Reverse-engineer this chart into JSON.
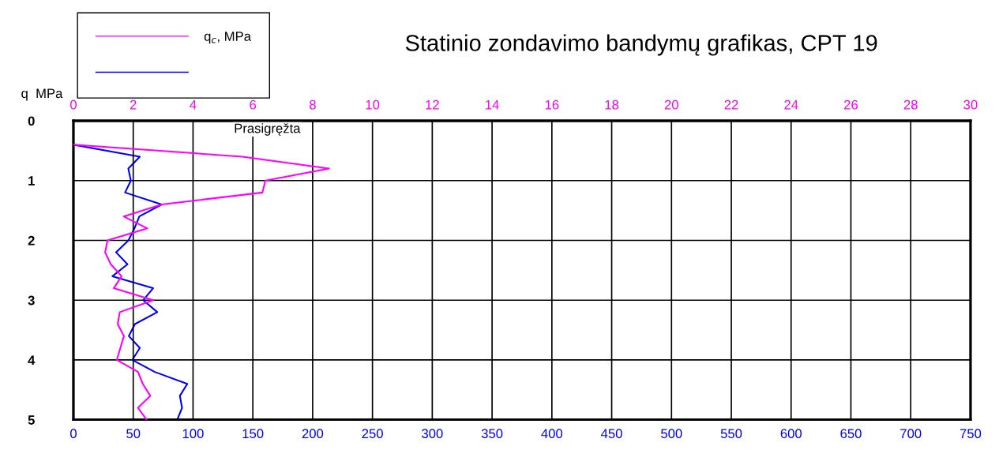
{
  "chart_data": {
    "type": "line",
    "title": "Statinio zondavimo bandymų grafikas, CPT 19",
    "x2label": "q  MPa",
    "orientation": "horizontal",
    "series": [
      {
        "name": "q$_{c}$, MPa",
        "color": "#ff00ff",
        "axis": "x2",
        "x": [
          0.4,
          0.6,
          0.8,
          1.0,
          1.2,
          1.4,
          1.6,
          1.8,
          2.0,
          2.2,
          2.4,
          2.6,
          2.8,
          3.0,
          3.2,
          3.4,
          3.6,
          3.8,
          4.0,
          4.2,
          4.4,
          4.6,
          4.8,
          5.0
        ],
        "values": [
          0,
          5.65,
          8.55,
          6.42,
          6.32,
          2.95,
          1.68,
          2.47,
          1.14,
          1.06,
          1.25,
          1.61,
          1.35,
          2.67,
          1.55,
          1.48,
          1.69,
          1.57,
          1.45,
          2.16,
          2.32,
          2.57,
          2.16,
          2.45
        ]
      },
      {
        "color": "#0000ff",
        "x": [
          0.4,
          0.6,
          0.8,
          1.0,
          1.2,
          1.4,
          1.6,
          1.8,
          2.0,
          2.2,
          2.4,
          2.6,
          2.8,
          3.0,
          3.2,
          3.4,
          3.6,
          3.8,
          4.0,
          4.2,
          4.4,
          4.6,
          4.8,
          5.0
        ],
        "values": [
          0,
          55.5,
          45.9,
          48,
          43.2,
          73.8,
          55.1,
          51,
          46,
          35.7,
          45.2,
          32.6,
          66.6,
          58.4,
          70.1,
          51.4,
          46.3,
          55.5,
          49.2,
          68,
          95.2,
          89,
          90.8,
          86.8
        ]
      }
    ],
    "ylim": [
      5,
      0
    ],
    "yticks": [
      0,
      1,
      2,
      3,
      4,
      5
    ],
    "xlim": [
      0,
      750
    ],
    "xticks": [
      0,
      50,
      100,
      150,
      200,
      250,
      300,
      350,
      400,
      450,
      500,
      550,
      600,
      650,
      700,
      750
    ],
    "x2lim": [
      0,
      30
    ],
    "x2ticks": [
      0,
      2,
      4,
      6,
      8,
      10,
      12,
      14,
      16,
      18,
      20,
      22,
      24,
      26,
      28,
      30
    ],
    "annotations": [
      "Prasigręžta"
    ],
    "grid": true,
    "legend": "top left",
    "line_style": "solid",
    "marker": "none"
  }
}
